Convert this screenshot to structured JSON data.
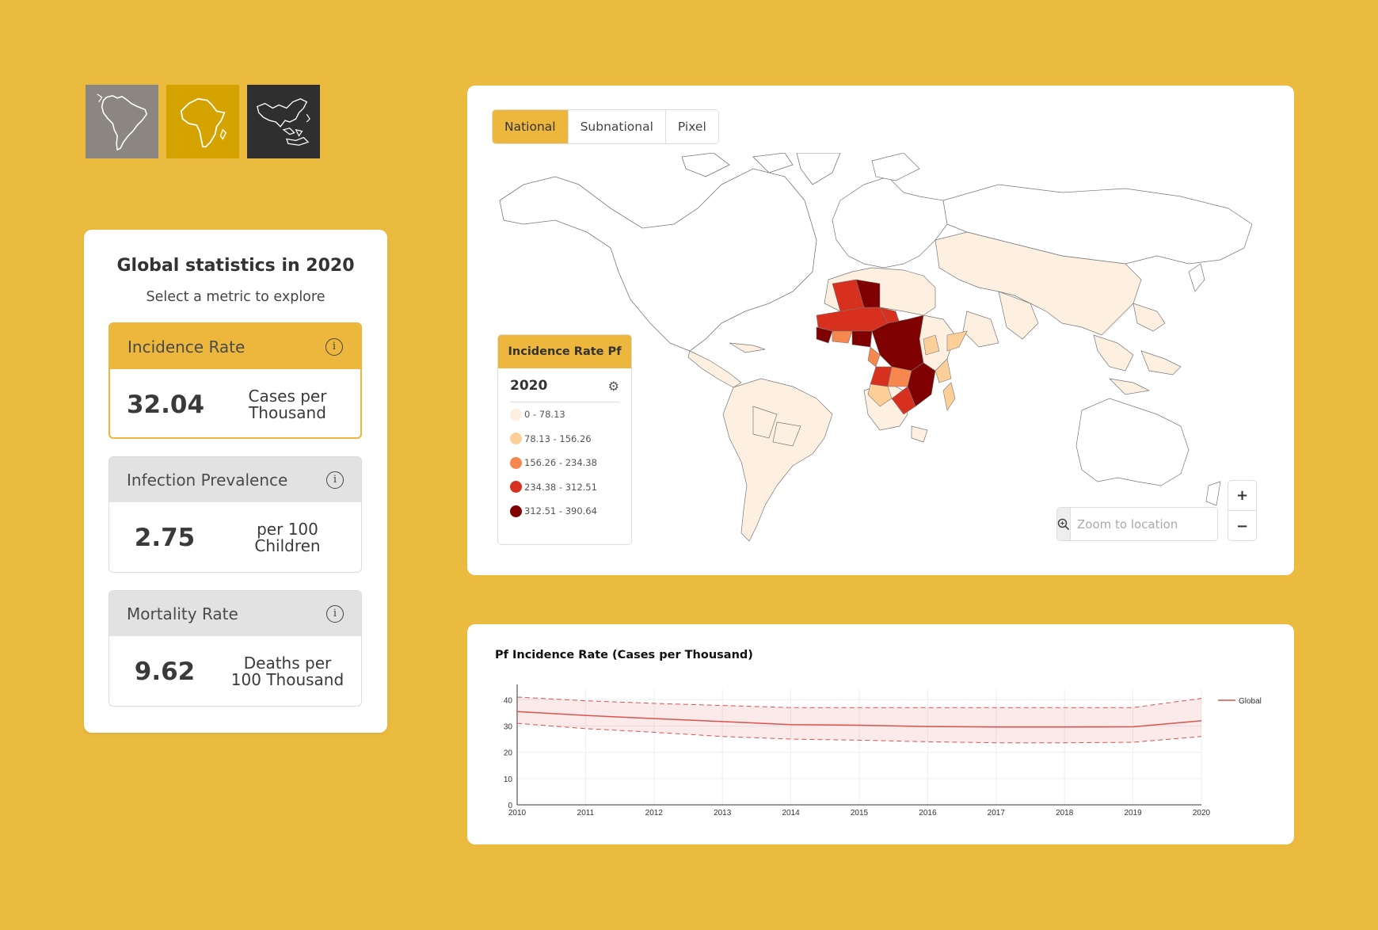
{
  "regions": [
    {
      "name": "Americas",
      "bg": "#8B8680",
      "icon": "south-america-icon"
    },
    {
      "name": "Africa",
      "bg": "#D4A300",
      "icon": "africa-icon"
    },
    {
      "name": "Asia-Pacific",
      "bg": "#2F2F2F",
      "icon": "asia-pacific-icon"
    }
  ],
  "stats": {
    "title": "Global statistics in 2020",
    "subtitle": "Select a metric to explore",
    "metrics": [
      {
        "label": "Incidence Rate",
        "value": "32.04",
        "unit_line1": "Cases per",
        "unit_line2": "Thousand",
        "active": true
      },
      {
        "label": "Infection Prevalence",
        "value": "2.75",
        "unit_line1": "per 100",
        "unit_line2": "Children",
        "active": false
      },
      {
        "label": "Mortality Rate",
        "value": "9.62",
        "unit_line1": "Deaths per",
        "unit_line2": "100 Thousand",
        "active": false
      }
    ]
  },
  "map": {
    "tabs": [
      "National",
      "Subnational",
      "Pixel"
    ],
    "active_tab": "National",
    "legend": {
      "title": "Incidence Rate Pf",
      "year": "2020",
      "items": [
        {
          "label": "0 - 78.13",
          "color": "#FEF0E1"
        },
        {
          "label": "78.13 - 156.26",
          "color": "#FDCF98"
        },
        {
          "label": "156.26 - 234.38",
          "color": "#F6884F"
        },
        {
          "label": "234.38 - 312.51",
          "color": "#D7301F"
        },
        {
          "label": "312.51 - 390.64",
          "color": "#7F0000"
        }
      ]
    },
    "zoom_placeholder": "Zoom to location",
    "zoom_in": "+",
    "zoom_out": "−"
  },
  "chart_data": {
    "type": "line",
    "title": "Pf Incidence Rate (Cases per Thousand)",
    "x": [
      "2010",
      "2011",
      "2012",
      "2013",
      "2014",
      "2015",
      "2016",
      "2017",
      "2018",
      "2019",
      "2020"
    ],
    "yticks": [
      "0",
      "10",
      "20",
      "30",
      "40"
    ],
    "ylim": [
      0,
      44
    ],
    "series": [
      {
        "name": "Global",
        "color": "#D9534F",
        "values": [
          35.5,
          34.0,
          32.8,
          31.7,
          30.5,
          30.3,
          29.8,
          29.6,
          29.6,
          29.7,
          32.0
        ],
        "upper": [
          41.0,
          39.6,
          38.6,
          37.8,
          37.0,
          37.0,
          37.0,
          37.0,
          37.0,
          37.0,
          40.5
        ],
        "lower": [
          31.0,
          29.0,
          27.6,
          26.0,
          25.0,
          24.6,
          24.0,
          23.6,
          23.6,
          23.8,
          26.0
        ]
      }
    ],
    "legend_position": "top-right",
    "grid": true
  }
}
